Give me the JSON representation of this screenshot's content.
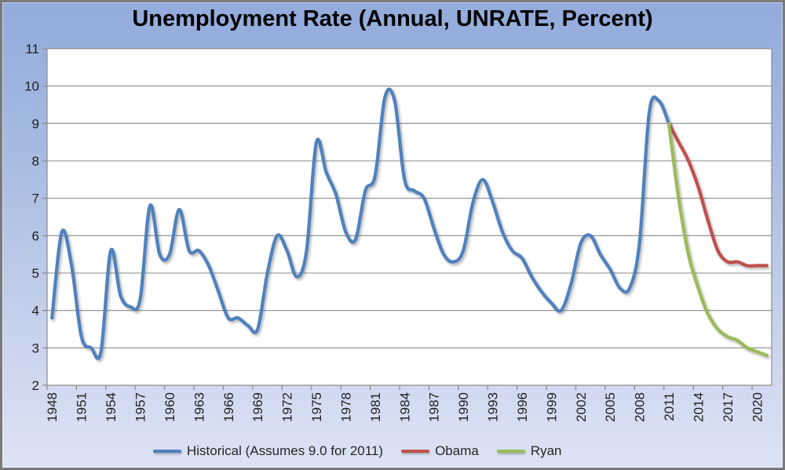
{
  "title": "Unemployment Rate (Annual, UNRATE, Percent)",
  "legend": {
    "historical_label": "Historical (Assumes 9.0 for 2011)",
    "obama_label": "Obama",
    "ryan_label": "Ryan"
  },
  "colors": {
    "historical": "#4F81BD",
    "obama": "#C0504D",
    "ryan": "#9BBB59",
    "gridline": "#8a8a8a",
    "plot_border": "#8a8a8a",
    "plot_fill": "#ffffff",
    "axis_text": "#1f1f1f",
    "background_top": "#92abdb",
    "background_bottom": "#dce3f4"
  },
  "chart_data": {
    "type": "line",
    "title": "Unemployment Rate (Annual, UNRATE, Percent)",
    "xlabel": "",
    "ylabel": "",
    "grid": true,
    "legend_position": "bottom",
    "x_axis": {
      "category_range": [
        1948,
        2021
      ],
      "tick_labels": [
        "1948",
        "1951",
        "1954",
        "1957",
        "1960",
        "1963",
        "1966",
        "1969",
        "1972",
        "1975",
        "1978",
        "1981",
        "1984",
        "1987",
        "1990",
        "1993",
        "1996",
        "1999",
        "2002",
        "2005",
        "2008",
        "2011",
        "2014",
        "2017",
        "2020"
      ],
      "tick_step_years": 3,
      "label_rotation_deg": -90
    },
    "y_axis": {
      "ticks": [
        2,
        3,
        4,
        5,
        6,
        7,
        8,
        9,
        10,
        11
      ],
      "ylim": [
        2,
        11
      ]
    },
    "series": [
      {
        "name": "Historical (Assumes 9.0 for 2011)",
        "color": "#4F81BD",
        "start_year": 1948,
        "values": [
          3.8,
          6.1,
          5.2,
          3.3,
          3.0,
          2.9,
          5.6,
          4.4,
          4.1,
          4.3,
          6.8,
          5.5,
          5.5,
          6.7,
          5.6,
          5.6,
          5.2,
          4.5,
          3.8,
          3.8,
          3.6,
          3.5,
          5.0,
          6.0,
          5.6,
          4.9,
          5.6,
          8.5,
          7.7,
          7.1,
          6.1,
          5.9,
          7.2,
          7.6,
          9.7,
          9.6,
          7.5,
          7.2,
          7.0,
          6.2,
          5.5,
          5.3,
          5.6,
          6.9,
          7.5,
          6.9,
          6.1,
          5.6,
          5.4,
          4.9,
          4.5,
          4.2,
          4.0,
          4.7,
          5.8,
          6.0,
          5.5,
          5.1,
          4.6,
          4.6,
          5.8,
          9.3,
          9.6,
          9.0
        ]
      },
      {
        "name": "Obama",
        "color": "#C0504D",
        "start_year": 2011,
        "values": [
          9.0,
          8.5,
          8.0,
          7.3,
          6.4,
          5.6,
          5.3,
          5.3,
          5.2,
          5.2,
          5.2
        ]
      },
      {
        "name": "Ryan",
        "color": "#9BBB59",
        "start_year": 2011,
        "values": [
          9.0,
          7.0,
          5.5,
          4.6,
          3.9,
          3.5,
          3.3,
          3.2,
          3.0,
          2.9,
          2.8
        ]
      }
    ]
  }
}
